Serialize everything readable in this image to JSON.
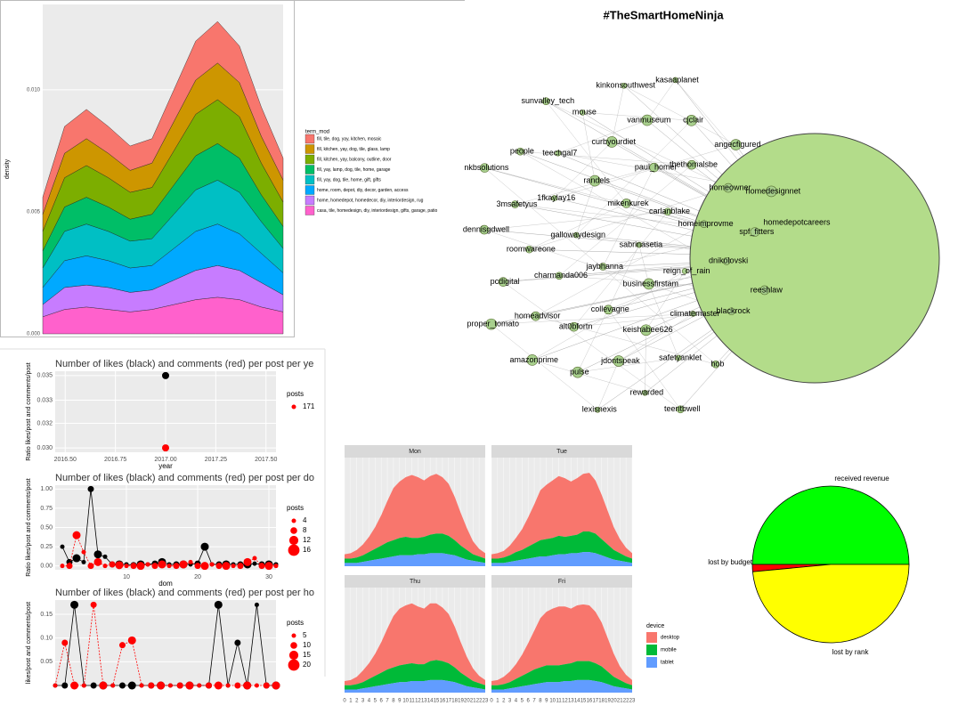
{
  "chart_data": [
    {
      "type": "area_stack",
      "y_label": "density",
      "legend_title": "term_mod",
      "x": [
        0,
        1,
        2,
        3,
        4,
        5,
        6,
        7,
        8,
        9,
        10,
        11
      ],
      "xlim": [
        0,
        11
      ],
      "ylim": [
        0,
        0.0135
      ],
      "yticks": [
        {
          "value": 0,
          "label": "0.000"
        },
        {
          "value": 0.005,
          "label": "0.005"
        },
        {
          "value": 0.01,
          "label": "0.010"
        }
      ],
      "series": [
        {
          "name": "fill, tile, dog, yay, kitchen, mosaic",
          "color": "#f8766d",
          "values": [
            0.0007,
            0.0011,
            0.0012,
            0.0011,
            0.001,
            0.001,
            0.0013,
            0.0016,
            0.0017,
            0.0015,
            0.0012,
            0.0009
          ]
        },
        {
          "name": "fill, kitchen, yay, dog, tile, glass, lamp",
          "color": "#cd9600",
          "values": [
            0.0007,
            0.001,
            0.0011,
            0.001,
            0.0009,
            0.001,
            0.0012,
            0.0014,
            0.0015,
            0.0014,
            0.0011,
            0.0009
          ]
        },
        {
          "name": "fill, kitchen, yay, balcony, outline, door",
          "color": "#7cae00",
          "values": [
            0.0008,
            0.0012,
            0.0013,
            0.0012,
            0.0011,
            0.0011,
            0.0014,
            0.0017,
            0.0018,
            0.0017,
            0.0013,
            0.001
          ]
        },
        {
          "name": "fill, yay, lamp, dog, tile, home, garage",
          "color": "#00be67",
          "values": [
            0.0007,
            0.001,
            0.0011,
            0.001,
            0.0009,
            0.001,
            0.0012,
            0.0014,
            0.0015,
            0.0014,
            0.0011,
            0.0009
          ]
        },
        {
          "name": "fill, yay, dog, tile, home, gift, gifts",
          "color": "#00bfc4",
          "values": [
            0.0008,
            0.0012,
            0.0013,
            0.0012,
            0.0011,
            0.0011,
            0.0014,
            0.0017,
            0.0018,
            0.0017,
            0.0013,
            0.001
          ]
        },
        {
          "name": "home, room, depot, diy, decor, garden, access",
          "color": "#00a9ff",
          "values": [
            0.0007,
            0.0011,
            0.0012,
            0.0011,
            0.001,
            0.001,
            0.0013,
            0.0016,
            0.0017,
            0.0015,
            0.0012,
            0.0009
          ]
        },
        {
          "name": "home, homedepot, homedecor, diy, interiordesign, rug",
          "color": "#c77cff",
          "values": [
            0.0005,
            0.0009,
            0.0009,
            0.0009,
            0.0008,
            0.0008,
            0.001,
            0.0012,
            0.0013,
            0.0012,
            0.001,
            0.0007
          ]
        },
        {
          "name": "casa, tile, homedesign, diy, interiordesign, gifts, garage, patio",
          "color": "#ff61cc",
          "values": [
            0.0007,
            0.001,
            0.0011,
            0.001,
            0.0009,
            0.001,
            0.0012,
            0.0014,
            0.0015,
            0.0014,
            0.0011,
            0.0009
          ]
        }
      ]
    },
    {
      "type": "scatter",
      "title": "Number of likes (black) and comments (red) per post per ye",
      "x_label": "year",
      "y_label": "Ratio likes/post and comments/post",
      "xlim": [
        2016.45,
        2017.55
      ],
      "xticks": [
        {
          "value": 2016.5,
          "label": "2016.50"
        },
        2016.75,
        {
          "value": 2017,
          "label": "2017.00"
        },
        2017.25,
        {
          "value": 2017.5,
          "label": "2017.50"
        }
      ],
      "ylim": [
        0.0297,
        0.0353
      ],
      "yticks": [
        {
          "value": 0.03,
          "label": "0.030"
        },
        {
          "value": 0.0317,
          "label": "0.032"
        },
        {
          "value": 0.0333,
          "label": "0.033"
        },
        {
          "value": 0.035,
          "label": "0.035"
        }
      ],
      "x": [
        2017
      ],
      "series": [
        {
          "name": "likes",
          "color": "#000000",
          "values": [
            0.035
          ]
        },
        {
          "name": "comments",
          "color": "#ff0000",
          "values": [
            0.03
          ]
        }
      ],
      "size_legend": {
        "title": "posts",
        "values": [
          171
        ]
      }
    },
    {
      "type": "line",
      "title": "Number of likes (black) and comments (red) per post per do",
      "x_label": "dom",
      "y_label": "Ratio likes/post and comments/post",
      "xlim": [
        0,
        31
      ],
      "xticks": [
        10,
        20,
        30
      ],
      "ylim": [
        -0.05,
        1.05
      ],
      "yticks": [
        {
          "value": 0,
          "label": "0.00"
        },
        0.25,
        {
          "value": 0.5,
          "label": "0.50"
        },
        0.75,
        {
          "value": 1,
          "label": "1.00"
        }
      ],
      "x": [
        1,
        2,
        3,
        4,
        5,
        6,
        7,
        8,
        9,
        10,
        11,
        12,
        13,
        14,
        15,
        16,
        17,
        18,
        19,
        20,
        21,
        22,
        23,
        24,
        25,
        26,
        27,
        28,
        29,
        30,
        31
      ],
      "series": [
        {
          "name": "likes",
          "color": "#000000",
          "values": [
            0.25,
            0.05,
            0.1,
            0.05,
            1,
            0.15,
            0.12,
            0.02,
            0.02,
            0.02,
            0.01,
            0.02,
            0.02,
            0.03,
            0.05,
            0.02,
            0.02,
            0.02,
            0.02,
            0.03,
            0.25,
            0.02,
            0.02,
            0.02,
            0.02,
            0.02,
            0.02,
            0.03,
            0.02,
            0.02,
            0.02
          ]
        },
        {
          "name": "comments",
          "color": "#ff0000",
          "values": [
            0,
            0,
            0.4,
            0.18,
            0,
            0.05,
            0,
            0.02,
            0.01,
            0,
            0,
            0,
            0.02,
            0,
            0.02,
            0,
            0,
            0.02,
            0.05,
            0,
            0,
            0.02,
            0,
            0,
            0,
            0,
            0.05,
            0.1,
            0,
            0,
            0
          ]
        }
      ],
      "size_legend": {
        "title": "posts",
        "values": [
          4,
          8,
          12,
          16
        ]
      }
    },
    {
      "type": "line",
      "title": "Number of likes (black) and comments (red) per post per ho",
      "y_label": "likes/post and comments/post",
      "xlim": [
        0,
        23
      ],
      "ylim": [
        0,
        0.18
      ],
      "yticks": [
        0.05,
        {
          "value": 0.1,
          "label": "0.10"
        },
        0.15
      ],
      "x": [
        0,
        1,
        2,
        3,
        4,
        5,
        6,
        7,
        8,
        9,
        10,
        11,
        12,
        13,
        14,
        15,
        16,
        17,
        18,
        19,
        20,
        21,
        22,
        23
      ],
      "series": [
        {
          "name": "likes",
          "color": "#000000",
          "values": [
            0,
            0,
            0.17,
            0,
            0,
            0,
            0,
            0,
            0,
            0,
            0,
            0,
            0,
            0,
            0,
            0,
            0,
            0.17,
            0,
            0.09,
            0,
            0.17,
            0,
            0
          ]
        },
        {
          "name": "comments",
          "color": "#ff0000",
          "values": [
            0,
            0.09,
            0,
            0,
            0.17,
            0,
            0,
            0.085,
            0.095,
            0,
            0,
            0,
            0,
            0,
            0,
            0,
            0,
            0,
            0,
            0,
            0,
            0,
            0,
            0
          ]
        }
      ],
      "size_legend": {
        "title": "posts",
        "values": [
          5,
          10,
          15,
          20
        ]
      }
    },
    {
      "type": "facet_area",
      "legend_title": "device",
      "x": [
        0,
        1,
        2,
        3,
        4,
        5,
        6,
        7,
        8,
        9,
        10,
        11,
        12,
        13,
        14,
        15,
        16,
        17,
        18,
        19,
        20,
        21,
        22,
        23
      ],
      "xlim": [
        0,
        23
      ],
      "xticks": [
        0,
        1,
        2,
        3,
        4,
        5,
        6,
        7,
        8,
        9,
        10,
        11,
        12,
        13,
        14,
        15,
        16,
        17,
        18,
        19,
        20,
        21,
        22,
        23
      ],
      "ylim": [
        0,
        100
      ],
      "series": [
        {
          "name": "desktop",
          "color": "#f8766d"
        },
        {
          "name": "mobile",
          "color": "#00ba38"
        },
        {
          "name": "tablet",
          "color": "#619cff"
        }
      ],
      "panels": [
        {
          "title": "Mon",
          "values": [
            [
              4,
              5,
              7,
              10,
              14,
              20,
              28,
              38,
              48,
              52,
              55,
              58,
              56,
              52,
              54,
              55,
              52,
              48,
              40,
              30,
              20,
              12,
              7,
              5
            ],
            [
              4,
              4,
              5,
              6,
              8,
              10,
              12,
              14,
              15,
              16,
              17,
              16,
              15,
              16,
              17,
              18,
              18,
              17,
              14,
              11,
              9,
              6,
              5,
              4
            ],
            [
              3,
              3,
              3,
              4,
              5,
              6,
              7,
              8,
              9,
              10,
              10,
              10,
              11,
              11,
              12,
              12,
              12,
              11,
              10,
              8,
              6,
              5,
              4,
              3
            ]
          ]
        },
        {
          "title": "Tue",
          "values": [
            [
              4,
              5,
              6,
              9,
              13,
              19,
              27,
              36,
              46,
              50,
              53,
              55,
              54,
              50,
              52,
              53,
              54,
              49,
              41,
              31,
              21,
              13,
              8,
              5
            ],
            [
              4,
              4,
              5,
              6,
              8,
              9,
              11,
              13,
              15,
              16,
              16,
              17,
              16,
              16,
              17,
              19,
              19,
              18,
              15,
              12,
              9,
              7,
              5,
              4
            ],
            [
              3,
              3,
              3,
              4,
              5,
              6,
              7,
              8,
              9,
              9,
              10,
              11,
              11,
              12,
              12,
              13,
              13,
              12,
              10,
              8,
              6,
              5,
              4,
              3
            ]
          ]
        },
        {
          "title": "Thu",
          "values": [
            [
              4,
              5,
              7,
              11,
              15,
              21,
              29,
              39,
              49,
              54,
              56,
              57,
              55,
              53,
              55,
              54,
              51,
              47,
              39,
              29,
              19,
              12,
              7,
              5
            ],
            [
              4,
              4,
              5,
              6,
              8,
              10,
              12,
              14,
              15,
              16,
              17,
              17,
              16,
              16,
              18,
              19,
              18,
              17,
              14,
              11,
              9,
              6,
              5,
              4
            ],
            [
              3,
              3,
              3,
              4,
              5,
              6,
              7,
              8,
              9,
              10,
              10,
              11,
              11,
              11,
              12,
              12,
              12,
              11,
              10,
              8,
              6,
              5,
              4,
              3
            ]
          ]
        },
        {
          "title": "Fri",
          "values": [
            [
              4,
              5,
              7,
              10,
              14,
              20,
              28,
              37,
              47,
              51,
              54,
              56,
              55,
              52,
              53,
              54,
              53,
              49,
              42,
              32,
              22,
              13,
              8,
              5
            ],
            [
              4,
              4,
              5,
              6,
              8,
              10,
              12,
              14,
              15,
              16,
              16,
              16,
              16,
              17,
              18,
              18,
              18,
              17,
              15,
              12,
              9,
              7,
              5,
              4
            ],
            [
              3,
              3,
              3,
              4,
              5,
              6,
              7,
              8,
              9,
              10,
              10,
              10,
              11,
              11,
              12,
              12,
              12,
              11,
              10,
              8,
              6,
              5,
              4,
              3
            ]
          ]
        }
      ]
    },
    {
      "type": "pie",
      "categories": [
        "received revenue",
        "lost by budget",
        "lost by rank"
      ],
      "values": [
        50,
        1.5,
        48.5
      ],
      "colors": [
        "#00ff00",
        "#ff0000",
        "#ffff00"
      ]
    }
  ],
  "network": {
    "title": "#TheSmartHomeNinja",
    "hub": "homedepotcareers",
    "nodes": [
      "sabrinasetia",
      "jaybhanna",
      "mikenkurek",
      "businessfirstam",
      "gallowaydesign",
      "carlanblake",
      "collevagne",
      "randels",
      "reign_of_rain",
      "charmanda006",
      "paul_homer",
      "keishabee626",
      "1fkaylay16",
      "homeimprovme",
      "alt0bfortn",
      "curbyourdiet",
      "climatemaster",
      "roomwareone",
      "thethomalsbe",
      "jdontspeak",
      "teechgal7",
      "dnikolovski",
      "homeadvisor",
      "vanmuseum",
      "safetyanklet",
      "3msafetyus",
      "homeowner",
      "pulse",
      "mouse",
      "blackrock",
      "pcdigital",
      "cjclair",
      "rewarded",
      "people",
      "spf_fitters",
      "amazonprime",
      "kinkonsouthwest",
      "hob",
      "dennisgdwell",
      "angecfigured",
      "lexisnexis",
      "sunvalley_tech",
      "reeshlaw",
      "proper_tomato",
      "kasaaplanet",
      "teentbwell",
      "nkbsolutions",
      "homedesignnet"
    ]
  }
}
